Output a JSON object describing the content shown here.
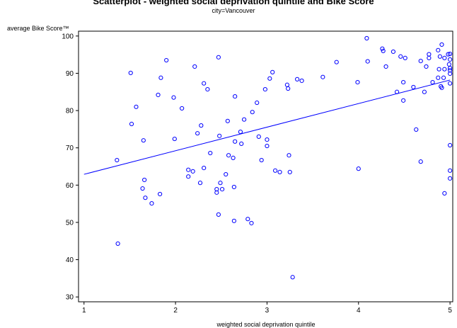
{
  "chart_data": {
    "type": "scatter",
    "title": "Scatterplot - weighted social deprivation quintile and Bike Score",
    "subtitle": "city=Vancouver",
    "x_label": "weighted social deprivation quintile",
    "y_label": "average Bike Score™",
    "color": "#0000ff",
    "x": [
      1.36,
      1.37,
      1.51,
      1.52,
      1.57,
      1.65,
      1.66,
      1.64,
      1.67,
      1.74,
      1.81,
      1.84,
      1.83,
      1.9,
      1.98,
      1.99,
      2.07,
      2.14,
      2.14,
      2.19,
      2.21,
      2.24,
      2.28,
      2.27,
      2.31,
      2.31,
      2.35,
      2.38,
      2.45,
      2.45,
      2.47,
      2.48,
      2.47,
      2.49,
      2.51,
      2.55,
      2.57,
      2.58,
      2.63,
      2.64,
      2.64,
      2.65,
      2.65,
      2.71,
      2.72,
      2.75,
      2.79,
      2.83,
      2.84,
      2.89,
      2.91,
      2.94,
      2.98,
      3.0,
      3.0,
      3.03,
      3.06,
      3.09,
      3.14,
      3.22,
      3.23,
      3.24,
      3.25,
      3.28,
      3.33,
      3.38,
      3.61,
      3.76,
      3.99,
      4.0,
      4.09,
      4.1,
      4.26,
      4.27,
      4.3,
      4.38,
      4.42,
      4.46,
      4.49,
      4.49,
      4.51,
      4.6,
      4.63,
      4.68,
      4.68,
      4.72,
      4.74,
      4.77,
      4.77,
      4.81,
      4.87,
      4.87,
      4.88,
      4.89,
      4.9,
      4.91,
      4.91,
      4.94,
      4.93,
      4.94,
      4.94,
      4.98,
      4.99,
      5.0,
      5.0,
      5.0,
      5.0,
      5.0,
      5.0,
      5.0,
      5.0,
      5.0
    ],
    "values": [
      66.7,
      44.3,
      90.1,
      76.4,
      81.0,
      72.0,
      61.4,
      59.1,
      56.6,
      55.1,
      84.2,
      88.8,
      57.6,
      93.5,
      83.5,
      72.4,
      80.6,
      64.1,
      62.3,
      63.7,
      91.8,
      73.9,
      76.0,
      60.6,
      87.3,
      64.6,
      85.7,
      68.6,
      58.0,
      58.9,
      94.3,
      73.2,
      52.1,
      60.6,
      58.9,
      62.9,
      77.2,
      68.0,
      67.3,
      59.5,
      50.4,
      83.8,
      71.7,
      74.3,
      71.1,
      77.6,
      50.9,
      49.8,
      79.6,
      82.1,
      73.0,
      66.7,
      85.7,
      72.2,
      70.5,
      88.6,
      90.3,
      63.9,
      63.5,
      86.9,
      85.9,
      68.0,
      63.5,
      35.3,
      88.4,
      88.0,
      89.0,
      93.0,
      87.6,
      64.4,
      99.4,
      93.2,
      96.6,
      96.0,
      91.8,
      95.8,
      85.0,
      94.5,
      87.6,
      82.7,
      94.1,
      86.3,
      74.9,
      66.3,
      93.3,
      85.0,
      91.8,
      95.1,
      94.1,
      87.6,
      88.8,
      96.2,
      91.1,
      94.5,
      86.5,
      97.7,
      86.1,
      94.1,
      88.8,
      91.1,
      57.8,
      95.1,
      92.4,
      91.4,
      89.9,
      87.3,
      90.8,
      93.7,
      95.2,
      70.7,
      63.9,
      61.8
    ],
    "fit": {
      "x": [
        1,
        5
      ],
      "values": [
        62.9,
        88.2
      ],
      "color": "#0000ff"
    },
    "xlim": [
      0.94,
      5.03
    ],
    "ylim": [
      28.7,
      101.3
    ],
    "xticks": [
      1,
      2,
      3,
      4,
      5
    ],
    "yticks": [
      30,
      40,
      50,
      60,
      70,
      80,
      90,
      100
    ]
  }
}
